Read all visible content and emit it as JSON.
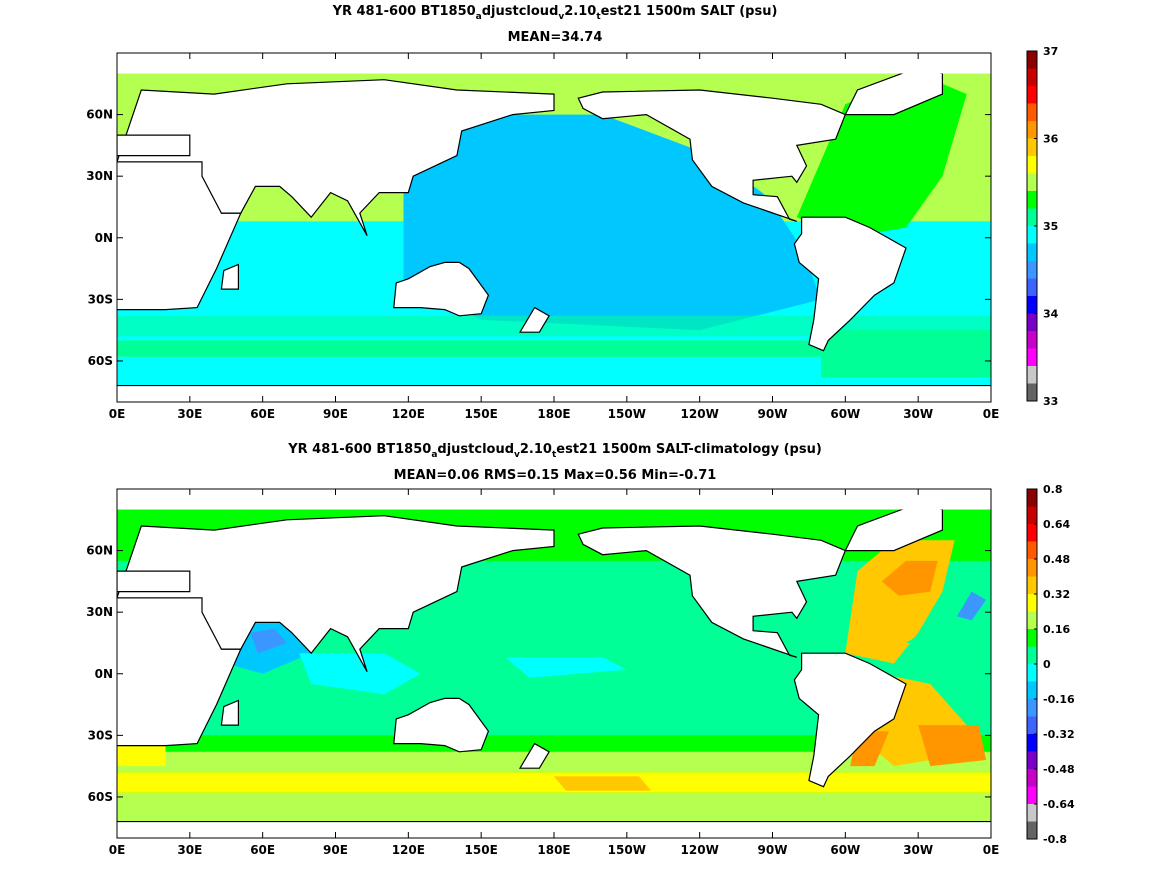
{
  "panels": [
    {
      "id": "top",
      "title_line1": [
        {
          "t": "YR 481-600 BT1850"
        },
        {
          "t": "a",
          "sub": true
        },
        {
          "t": "djustcloud"
        },
        {
          "t": "v",
          "sub": true
        },
        {
          "t": "2.10"
        },
        {
          "t": "t",
          "sub": true
        },
        {
          "t": "est21 1500m SALT (psu)"
        }
      ],
      "title_line2": "MEAN=34.74",
      "colorbar": {
        "ticks": [
          "37",
          "36",
          "35",
          "34",
          "33"
        ],
        "range": [
          33,
          37
        ],
        "colors": [
          "#8b0000",
          "#c80000",
          "#ff0000",
          "#ff5a00",
          "#ff9600",
          "#ffc800",
          "#ffff00",
          "#b4ff50",
          "#00ff00",
          "#00ff96",
          "#00ffff",
          "#00c8ff",
          "#3c96ff",
          "#3c64ff",
          "#0000ff",
          "#7800c8",
          "#c800c8",
          "#ff00ff",
          "#c8c8c8",
          "#646464"
        ]
      },
      "stats": {
        "mean": "34.74"
      }
    },
    {
      "id": "bottom",
      "title_line1": [
        {
          "t": "YR 481-600 BT1850"
        },
        {
          "t": "a",
          "sub": true
        },
        {
          "t": "djustcloud"
        },
        {
          "t": "v",
          "sub": true
        },
        {
          "t": "2.10"
        },
        {
          "t": "t",
          "sub": true
        },
        {
          "t": "est21 1500m SALT-climatology (psu)"
        }
      ],
      "title_line2": "MEAN=0.06   RMS=0.15   Max=0.56   Min=-0.71",
      "colorbar": {
        "ticks": [
          "0.8",
          "0.64",
          "0.48",
          "0.32",
          "0.16",
          "0",
          "-0.16",
          "-0.32",
          "-0.48",
          "-0.64",
          "-0.8"
        ],
        "range": [
          -0.8,
          0.8
        ],
        "colors": [
          "#8b0000",
          "#c80000",
          "#ff0000",
          "#ff5a00",
          "#ff9600",
          "#ffc800",
          "#ffff00",
          "#b4ff50",
          "#00ff00",
          "#00ff96",
          "#00ffff",
          "#00c8ff",
          "#3c96ff",
          "#3c64ff",
          "#0000ff",
          "#7800c8",
          "#c800c8",
          "#ff00ff",
          "#c8c8c8",
          "#646464"
        ]
      },
      "stats": {
        "mean": "0.06",
        "rms": "0.15",
        "max": "0.56",
        "min": "-0.71"
      }
    }
  ],
  "axes": {
    "x_ticks": [
      "0E",
      "30E",
      "60E",
      "90E",
      "120E",
      "150E",
      "180E",
      "150W",
      "120W",
      "90W",
      "60W",
      "30W",
      "0E"
    ],
    "y_ticks": [
      "60N",
      "30N",
      "0N",
      "30S",
      "60S"
    ],
    "y_values": [
      60,
      30,
      0,
      -30,
      -60
    ],
    "lon_range": [
      0,
      360
    ],
    "lat_range": [
      -80,
      90
    ]
  }
}
